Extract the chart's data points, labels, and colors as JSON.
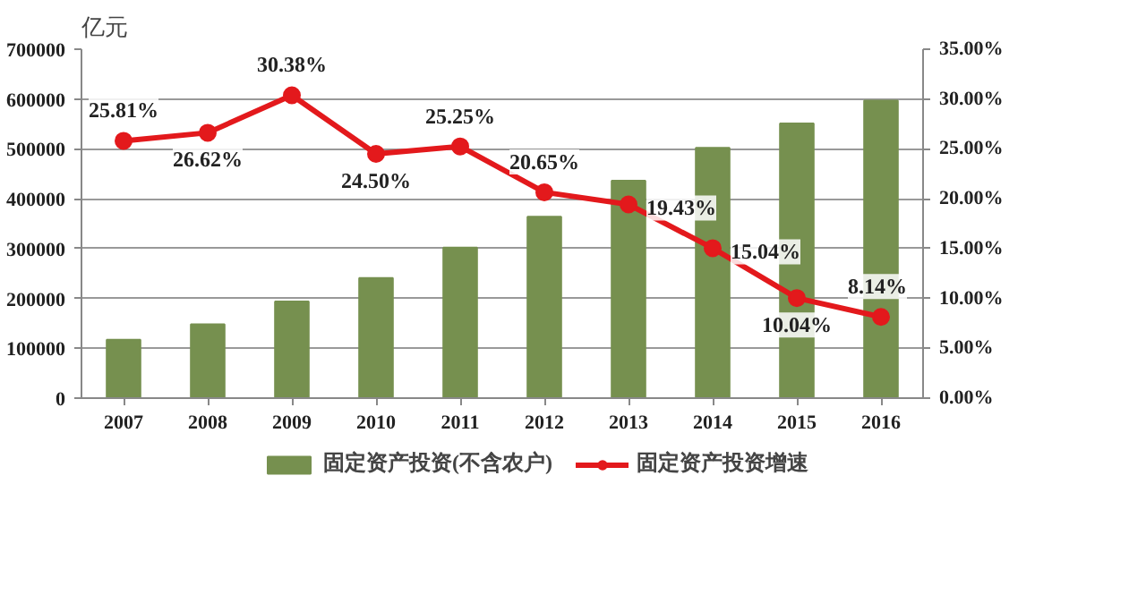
{
  "chart_data": {
    "type": "bar",
    "ylabel": "亿元",
    "categories": [
      "2007",
      "2008",
      "2009",
      "2010",
      "2011",
      "2012",
      "2013",
      "2014",
      "2015",
      "2016"
    ],
    "series": [
      {
        "name": "固定资产投资(不含农户)",
        "color": "#76904f",
        "values": [
          117000,
          148000,
          194000,
          241000,
          302000,
          364000,
          436000,
          502000,
          551000,
          597000
        ]
      },
      {
        "name": "固定资产投资增速",
        "type": "line",
        "axis": "y2",
        "color": "#e3191c",
        "values": [
          25.81,
          26.62,
          30.38,
          24.5,
          25.25,
          20.65,
          19.43,
          15.04,
          10.04,
          8.14
        ],
        "value_labels": [
          "25.81%",
          "26.62%",
          "30.38%",
          "24.50%",
          "25.25%",
          "20.65%",
          "19.43%",
          "15.04%",
          "10.04%",
          "8.14%"
        ]
      }
    ],
    "ylim": [
      0,
      700000
    ],
    "yticks": [
      0,
      100000,
      200000,
      300000,
      400000,
      500000,
      600000,
      700000
    ],
    "y2lim": [
      0,
      35
    ],
    "y2ticks": [
      {
        "value": 0,
        "label": "0.00%"
      },
      {
        "value": 5,
        "label": "5.00%"
      },
      {
        "value": 10,
        "label": "10.00%"
      },
      {
        "value": 15,
        "label": "15.00%"
      },
      {
        "value": 20,
        "label": "20.00%"
      },
      {
        "value": 25,
        "label": "25.00%"
      },
      {
        "value": 30,
        "label": "30.00%"
      },
      {
        "value": 35,
        "label": "35.00%"
      }
    ],
    "grid": "y",
    "legend": "bottom",
    "marker": "circle"
  }
}
